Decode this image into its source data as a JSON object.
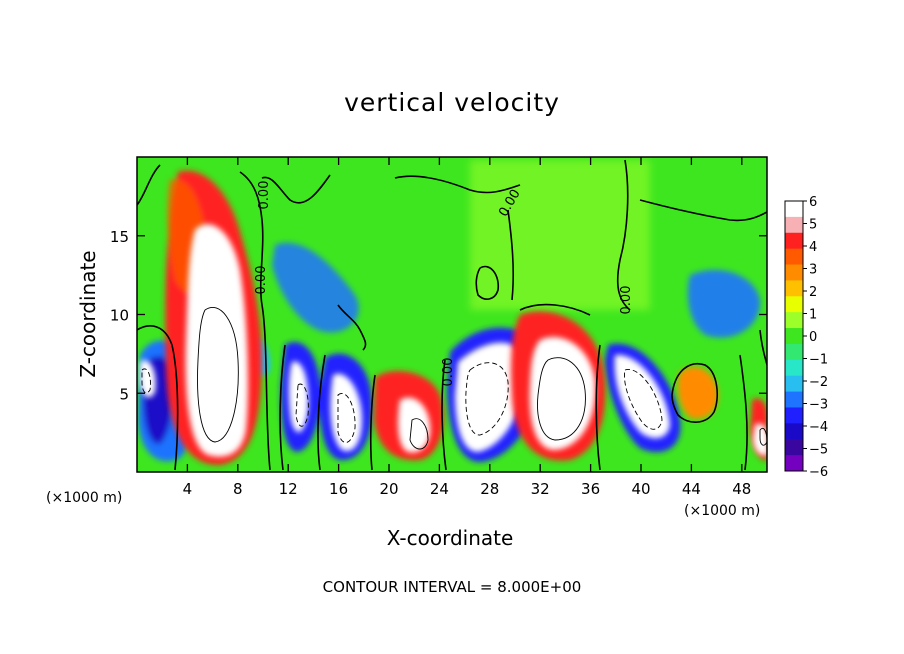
{
  "title": "vertical velocity",
  "footer": "CONTOUR INTERVAL = 8.000E+00",
  "chart_data": {
    "type": "heatmap",
    "title": "vertical velocity",
    "xlabel": "X-coordinate",
    "ylabel": "Z-coordinate",
    "x_unit_left": "(×1000 m)",
    "x_unit_right": "(×1000 m)",
    "xlim": [
      0,
      50
    ],
    "ylim": [
      0,
      20
    ],
    "x_ticks": [
      4,
      8,
      12,
      16,
      20,
      24,
      28,
      32,
      36,
      40,
      44,
      48
    ],
    "y_ticks": [
      5,
      10,
      15
    ],
    "colorbar": {
      "range": [
        -6,
        6
      ],
      "ticks": [
        "6",
        "5",
        "4",
        "3",
        "2",
        "1",
        "0",
        "−1",
        "−2",
        "−3",
        "−4",
        "−5",
        "−6"
      ],
      "colors": [
        "#ffffff",
        "#f7b0b4",
        "#ff2020",
        "#ff5a00",
        "#ff8c00",
        "#ffc000",
        "#e8ff00",
        "#9cff2a",
        "#3ee61f",
        "#32e870",
        "#28e6c8",
        "#28bef0",
        "#1e73ff",
        "#2020ff",
        "#1a0ac8",
        "#3a06a0",
        "#7400c0"
      ]
    },
    "contour_interval": 8.0,
    "contour_labels": [
      "0.00",
      "0.00",
      "0.00",
      "0.00",
      "0.00"
    ]
  }
}
